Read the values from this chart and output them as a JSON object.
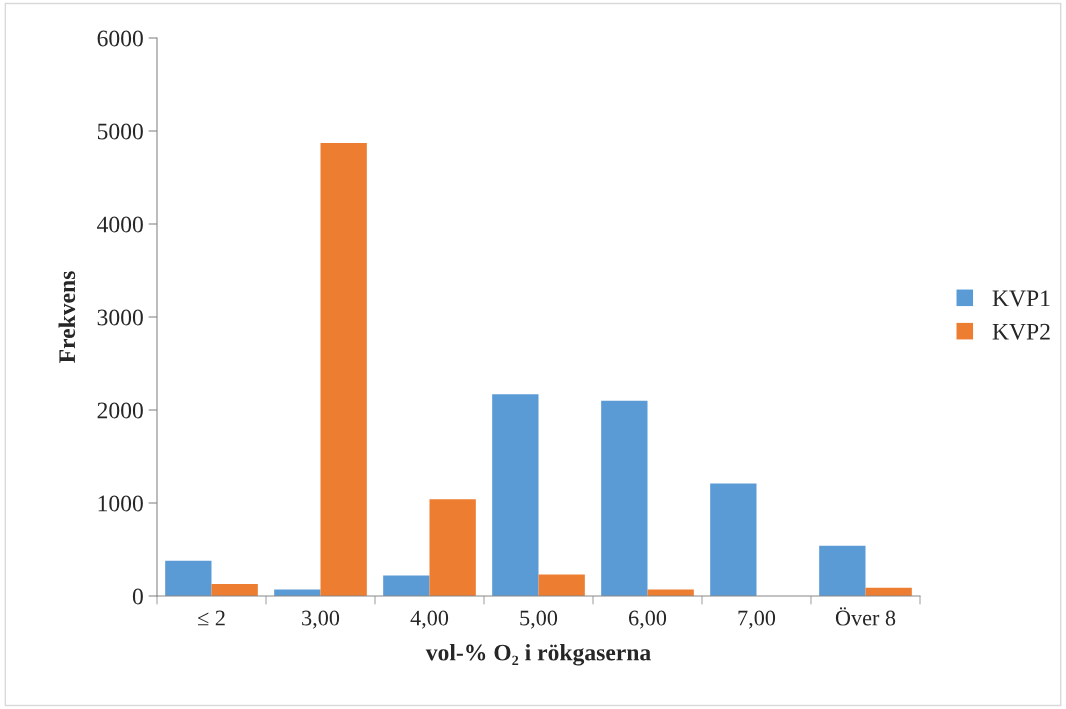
{
  "chart_data": {
    "type": "bar",
    "xlabel": "vol-% O₂ i rökgaserna",
    "ylabel": "Frekvens",
    "categories": [
      "≤ 2",
      "3,00",
      "4,00",
      "5,00",
      "6,00",
      "7,00",
      "Över 8"
    ],
    "series": [
      {
        "name": "KVP1",
        "color": "#5b9bd5",
        "values": [
          380,
          70,
          220,
          2170,
          2100,
          1210,
          540
        ]
      },
      {
        "name": "KVP2",
        "color": "#ed7d31",
        "values": [
          130,
          4870,
          1040,
          230,
          70,
          null,
          90
        ]
      }
    ],
    "ylim": [
      0,
      6000
    ],
    "yticks": [
      0,
      1000,
      2000,
      3000,
      4000,
      5000,
      6000
    ],
    "grid": false,
    "legend": "right"
  }
}
